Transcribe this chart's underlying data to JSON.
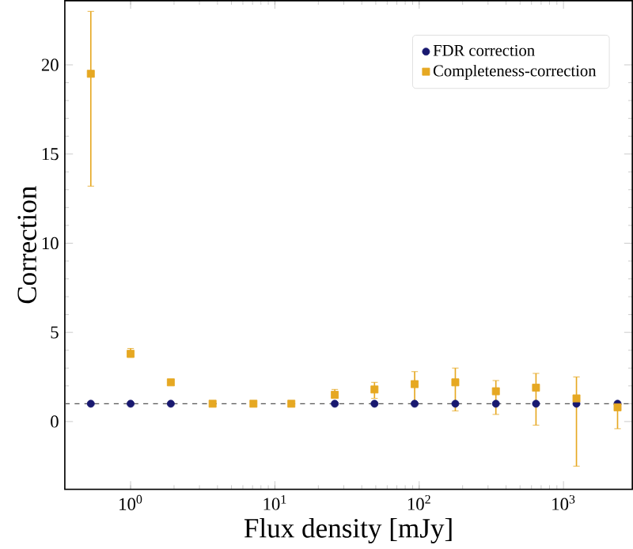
{
  "chart_data": {
    "type": "scatter",
    "xlabel": "Flux density [mJy]",
    "ylabel": "Correction",
    "log": "x",
    "x": [
      0.53,
      1.0,
      1.9,
      3.7,
      7.1,
      13,
      26,
      49,
      93,
      178,
      340,
      645,
      1230,
      2370
    ],
    "series": [
      {
        "name": "FDR correction",
        "color": "#191970",
        "marker": "circle",
        "values": [
          1.0,
          1.0,
          1.0,
          null,
          null,
          null,
          1.0,
          1.0,
          1.0,
          1.0,
          1.0,
          1.0,
          1.0,
          1.0
        ]
      },
      {
        "name": "Completeness-correction",
        "color": "#e6a822",
        "marker": "square",
        "values": [
          19.5,
          3.8,
          2.2,
          1.0,
          1.0,
          1.0,
          1.5,
          1.8,
          2.1,
          2.2,
          1.7,
          1.9,
          1.3,
          0.8
        ],
        "errors": [
          [
            13.2,
            23.0
          ],
          [
            3.6,
            4.1
          ],
          null,
          null,
          null,
          null,
          [
            1.3,
            1.8
          ],
          [
            1.3,
            2.2
          ],
          [
            1.0,
            2.8
          ],
          [
            0.6,
            3.0
          ],
          [
            0.4,
            2.3
          ],
          [
            -0.2,
            2.7
          ],
          [
            -2.5,
            2.5
          ],
          [
            -0.4,
            1.1
          ]
        ]
      }
    ],
    "xlim": [
      0.35,
      3000
    ],
    "ylim": [
      -3.8,
      23.6
    ],
    "xticks": [
      {
        "value": 1,
        "label": "10$^{0}$"
      },
      {
        "value": 10,
        "label": "10$^{1}$"
      },
      {
        "value": 100,
        "label": "10$^{2}$"
      },
      {
        "value": 1000,
        "label": "10$^{3}$"
      }
    ],
    "yticks": [
      0,
      5,
      10,
      15,
      20
    ],
    "ref_lines": [
      {
        "axis": "y",
        "value": 1,
        "color": "#555555",
        "line_style": "dashed"
      }
    ],
    "legend": "top right"
  }
}
